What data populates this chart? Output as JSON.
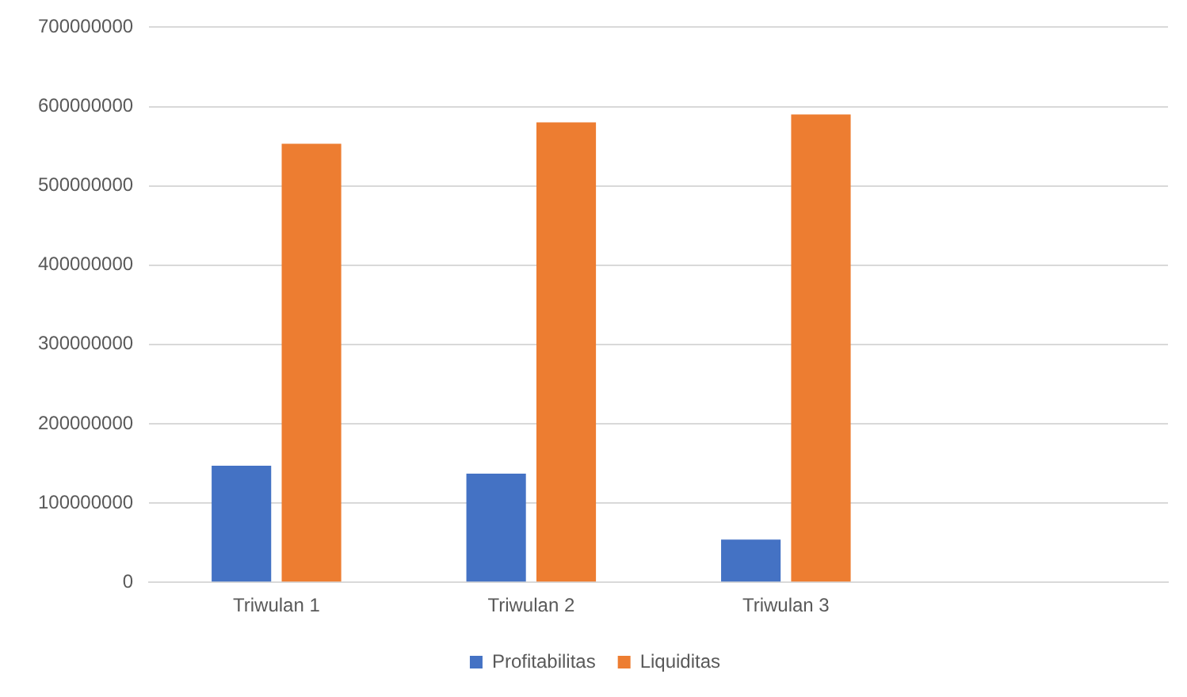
{
  "chart_data": {
    "type": "bar",
    "categories": [
      "Triwulan 1",
      "Triwulan 2",
      "Triwulan 3",
      null
    ],
    "series": [
      {
        "name": "Profitabilitas",
        "color": "#4472c4",
        "values": [
          147000000,
          137000000,
          54000000,
          null
        ]
      },
      {
        "name": "Liquiditas",
        "color": "#ed7d31",
        "values": [
          553000000,
          580000000,
          590000000,
          null
        ]
      }
    ],
    "ylim": [
      0,
      700000000
    ],
    "yticks": [
      0,
      100000000,
      200000000,
      300000000,
      400000000,
      500000000,
      600000000,
      700000000
    ],
    "grid": "y",
    "legend": "bottom"
  }
}
